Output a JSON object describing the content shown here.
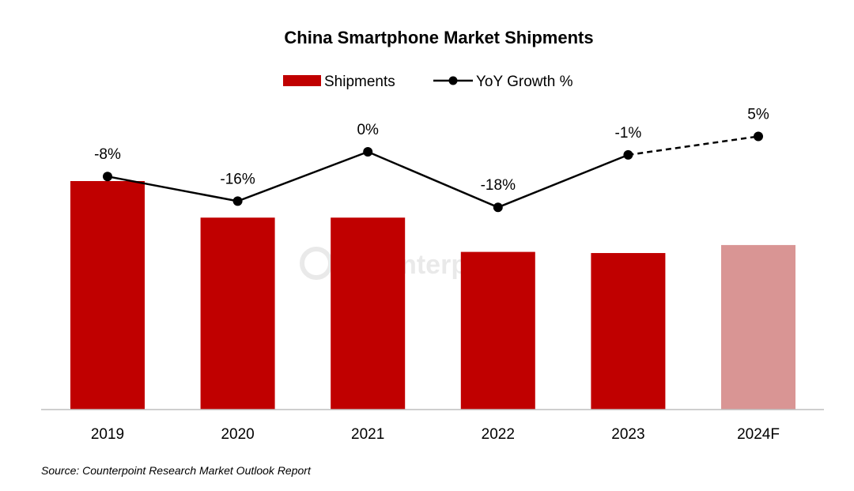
{
  "chart_data": {
    "type": "bar",
    "title": "China Smartphone Market Shipments",
    "categories": [
      "2019",
      "2020",
      "2021",
      "2022",
      "2023",
      "2024F"
    ],
    "series": [
      {
        "name": "Shipments",
        "type": "bar",
        "values": [
          100,
          84,
          84,
          69,
          68.5,
          72
        ],
        "colors": [
          "#c00000",
          "#c00000",
          "#c00000",
          "#c00000",
          "#c00000",
          "#d99594"
        ]
      },
      {
        "name": "YoY Growth %",
        "type": "line",
        "values": [
          -8,
          -16,
          0,
          -18,
          -1,
          5
        ],
        "labels": [
          "-8%",
          "-16%",
          "0%",
          "-18%",
          "-1%",
          "5%"
        ],
        "color": "#000000",
        "forecast_dashed_from": "2023"
      }
    ],
    "legend": "top",
    "grid": false,
    "y_axis_visible": false
  },
  "watermark": "Counterpoint",
  "source": "Source: Counterpoint Research Market Outlook Report"
}
